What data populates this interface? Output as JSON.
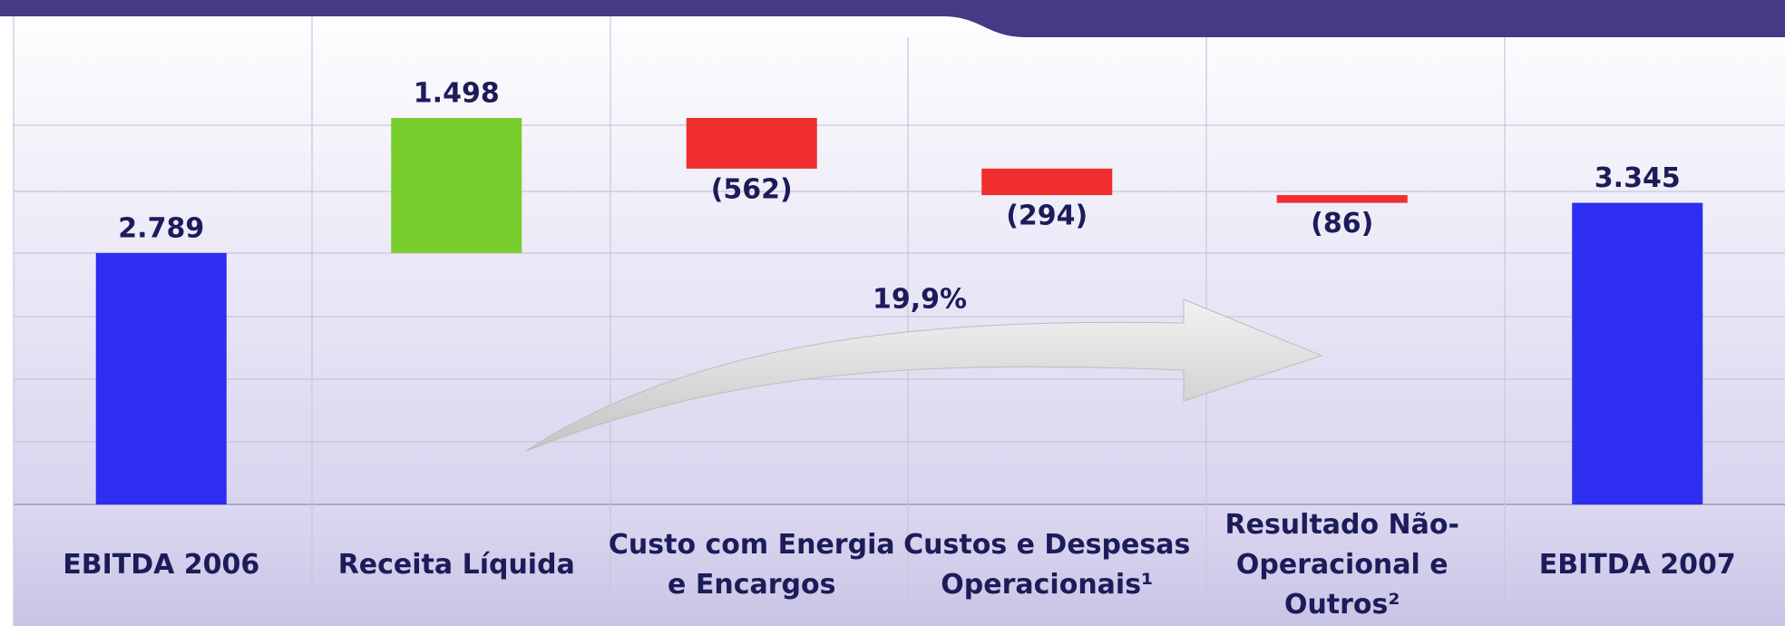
{
  "chart_data": {
    "type": "waterfall",
    "categories": [
      "EBITDA 2006",
      "Receita Líquida",
      "Custo com Energia e Encargos",
      "Custos e Despesas Operacionais¹",
      "Resultado Não-Operacional e Outros²",
      "EBITDA 2007"
    ],
    "values": [
      2789,
      1498,
      -562,
      -294,
      -86,
      3345
    ],
    "value_labels": [
      "2.789",
      "1.498",
      "(562)",
      "(294)",
      "(86)",
      "3.345"
    ],
    "colors": [
      "#0000ee",
      "#5cc400",
      "#ee0000",
      "#ee0000",
      "#ee0000",
      "#0000ee"
    ],
    "annotation": "19,9%"
  }
}
